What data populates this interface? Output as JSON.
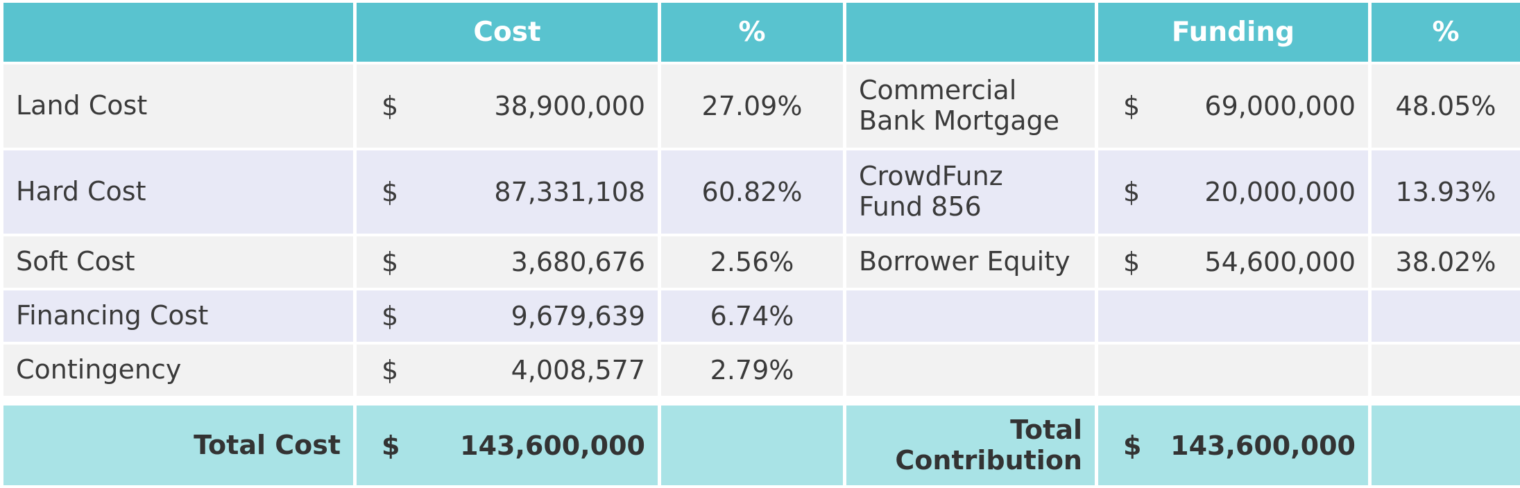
{
  "headers": {
    "blank_left": "",
    "cost": "Cost",
    "cost_pct": "%",
    "blank_mid": "",
    "funding": "Funding",
    "funding_pct": "%"
  },
  "currency_symbol": "$",
  "rows": [
    {
      "cost_label": "Land Cost",
      "cost_value": "38,900,000",
      "cost_pct": "27.09%",
      "fund_label": "Commercial Bank Mortgage",
      "fund_value": "69,000,000",
      "fund_pct": "48.05%"
    },
    {
      "cost_label": "Hard Cost",
      "cost_value": "87,331,108",
      "cost_pct": "60.82%",
      "fund_label": "CrowdFunz Fund 856",
      "fund_value": "20,000,000",
      "fund_pct": "13.93%"
    },
    {
      "cost_label": "Soft Cost",
      "cost_value": "3,680,676",
      "cost_pct": "2.56%",
      "fund_label": "Borrower Equity",
      "fund_value": "54,600,000",
      "fund_pct": "38.02%"
    },
    {
      "cost_label": "Financing Cost",
      "cost_value": "9,679,639",
      "cost_pct": "6.74%",
      "fund_label": "",
      "fund_value": "",
      "fund_pct": ""
    },
    {
      "cost_label": "Contingency",
      "cost_value": "4,008,577",
      "cost_pct": "2.79%",
      "fund_label": "",
      "fund_value": "",
      "fund_pct": ""
    }
  ],
  "totals": {
    "cost_label": "Total Cost",
    "cost_value": "143,600,000",
    "fund_label": "Total Contribution",
    "fund_value": "143,600,000"
  },
  "colors": {
    "header": "#59c3cf",
    "row_odd": "#f2f2f2",
    "row_even": "#e8e9f6",
    "total": "#a9e3e6"
  }
}
